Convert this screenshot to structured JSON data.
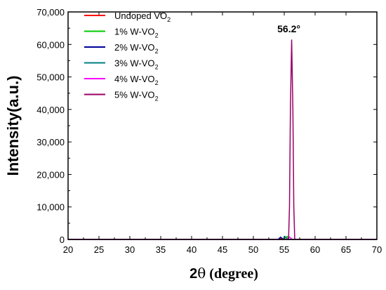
{
  "chart_data": {
    "type": "line",
    "title": "",
    "xlabel": {
      "main": "2",
      "theta": "θ",
      "rest": " (degree)"
    },
    "ylabel": "Intensity(a.u.)",
    "xlim": [
      20,
      70
    ],
    "ylim": [
      0,
      70000
    ],
    "xticks": [
      20,
      25,
      30,
      35,
      40,
      45,
      50,
      55,
      60,
      65,
      70
    ],
    "yticks": [
      0,
      10000,
      20000,
      30000,
      40000,
      50000,
      60000,
      70000
    ],
    "ytick_labels": [
      "0",
      "10,000",
      "20,000",
      "30,000",
      "40,000",
      "50,000",
      "60,000",
      "70,000"
    ],
    "grid": false,
    "legend_position": "top-left",
    "annotation": {
      "text": "56.2°",
      "x": 56.2,
      "y": 61500
    },
    "series": [
      {
        "name": "Undoped VO2",
        "label_main": "Undoped VO",
        "label_sub": "2",
        "color": "#ff0000",
        "x": [
          20,
          54.0,
          54.3,
          54.6,
          55.0,
          70
        ],
        "y": [
          0,
          0,
          400,
          100,
          0,
          0
        ]
      },
      {
        "name": "1% W-VO2",
        "label_main": "1% W-VO",
        "label_sub": "2",
        "color": "#00cc00",
        "x": [
          20,
          55.0,
          55.2,
          55.5,
          55.8,
          70
        ],
        "y": [
          0,
          0,
          600,
          900,
          0,
          0
        ]
      },
      {
        "name": "2% W-VO2",
        "label_main": "2% W-VO",
        "label_sub": "2",
        "color": "#000099",
        "x": [
          20,
          54.0,
          54.4,
          54.7,
          55.0,
          70
        ],
        "y": [
          0,
          0,
          700,
          300,
          0,
          0
        ]
      },
      {
        "name": "3% W-VO2",
        "label_main": "3% W-VO",
        "label_sub": "2",
        "color": "#008080",
        "x": [
          20,
          54.8,
          55.1,
          55.4,
          55.7,
          70
        ],
        "y": [
          0,
          0,
          900,
          400,
          0,
          0
        ]
      },
      {
        "name": "4% W-VO2",
        "label_main": "4% W-VO",
        "label_sub": "2",
        "color": "#ff00ff",
        "x": [
          20,
          55.5,
          55.8,
          56.0,
          56.3,
          70
        ],
        "y": [
          0,
          0,
          800,
          500,
          0,
          0
        ]
      },
      {
        "name": "5% W-VO2",
        "label_main": "5% W-VO",
        "label_sub": "2",
        "color": "#990066",
        "x": [
          20,
          55.7,
          55.85,
          56.0,
          56.2,
          56.4,
          56.55,
          56.7,
          70
        ],
        "y": [
          0,
          0,
          10000,
          40000,
          61500,
          40000,
          10000,
          0,
          0
        ]
      }
    ]
  }
}
